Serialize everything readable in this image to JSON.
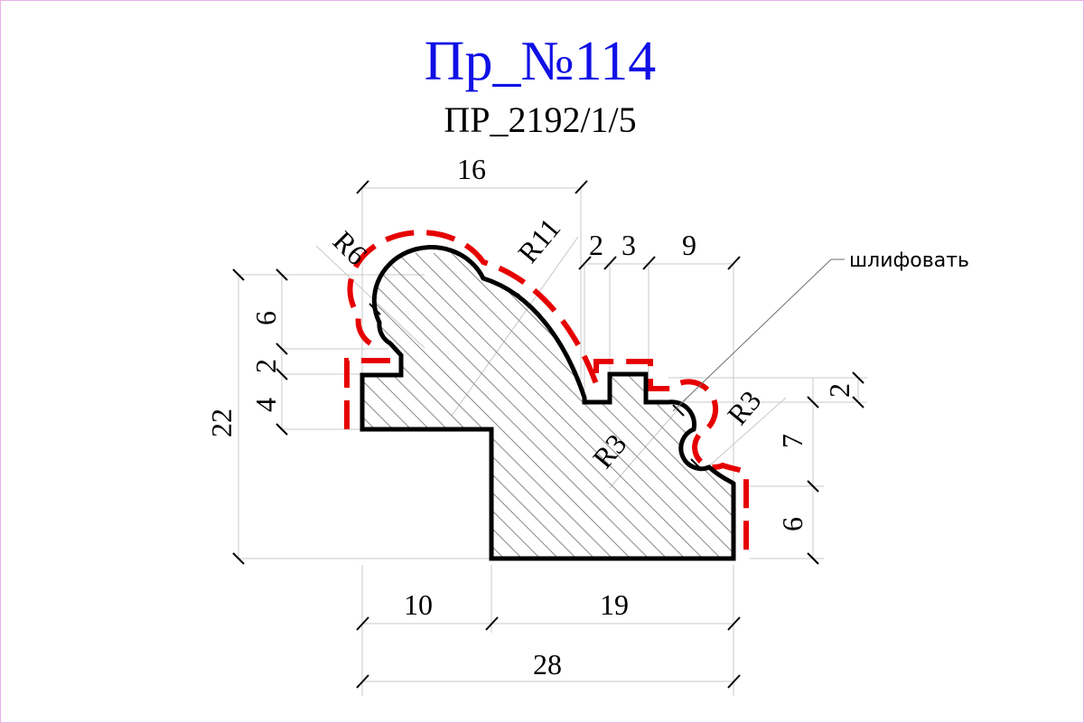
{
  "drawing": {
    "title": "Пр_№114",
    "subtitle": "ПР_2192/1/5",
    "note": "шлифовать",
    "colors": {
      "title": "#1010e6",
      "profile": "#000000",
      "sanding_line": "#e60000",
      "border": "#e6b3e6"
    },
    "dimensions": {
      "top_width": "16",
      "step_2": "2",
      "step_3": "3",
      "step_9": "9",
      "left_6": "6",
      "left_2": "2",
      "left_4": "4",
      "total_height": "22",
      "right_2": "2",
      "right_7": "7",
      "right_6": "6",
      "bottom_10": "10",
      "bottom_19": "19",
      "total_width": "28"
    },
    "radii": {
      "r6": "R6",
      "r11": "R11",
      "r3_inner": "R3",
      "r3_right": "R3"
    }
  }
}
